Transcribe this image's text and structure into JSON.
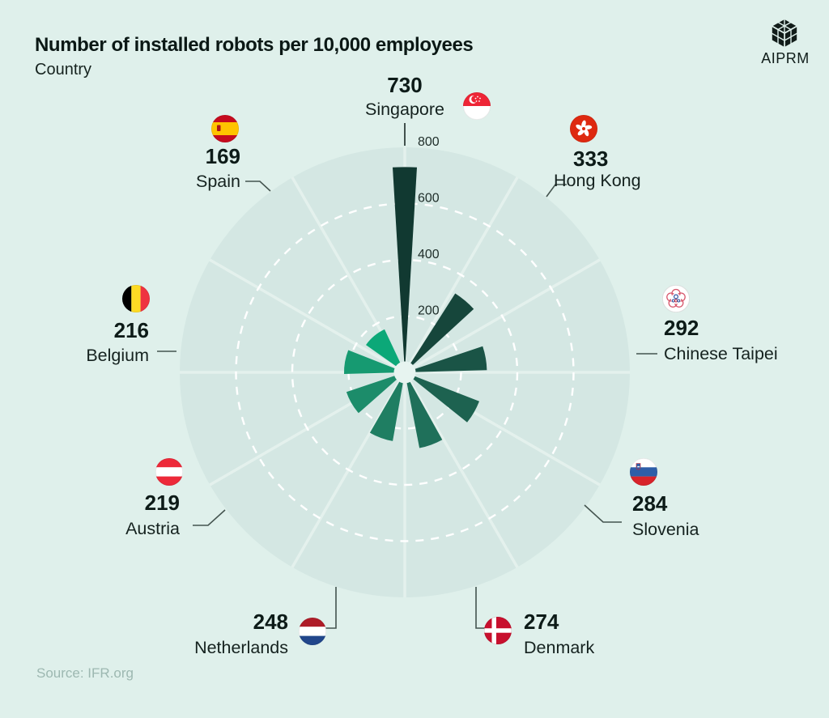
{
  "header": {
    "title": "Number of installed robots per 10,000 employees",
    "subtitle": "Country"
  },
  "brand": {
    "name": "AIPRM"
  },
  "footer": {
    "source_label": "Source: IFR.org"
  },
  "chart_data": {
    "type": "bar",
    "layout": "polar-radial-fan",
    "title": "Number of installed robots per 10,000 employees",
    "xlabel": "Country",
    "ylabel": "Installed robots per 10,000 employees",
    "rlim": [
      0,
      800
    ],
    "axis_ticks": [
      200,
      400,
      600,
      800
    ],
    "grid": "dashed white circles at 200/400/600, 12 radial sectors, solid outer disc at 800",
    "legend_position": "labels around chart with flags and callout lines",
    "background_accent": "#d4e7e3",
    "points": [
      {
        "label": "Singapore",
        "value": 730,
        "angle_deg": 0,
        "color": "#113931",
        "flag_icon": "flag-singapore-icon"
      },
      {
        "label": "Hong Kong",
        "value": 333,
        "angle_deg": 40,
        "color": "#16463b",
        "flag_icon": "flag-hong-kong-icon"
      },
      {
        "label": "Chinese Taipei",
        "value": 292,
        "angle_deg": 80,
        "color": "#1a5446",
        "flag_icon": "flag-chinese-taipei-icon"
      },
      {
        "label": "Slovenia",
        "value": 284,
        "angle_deg": 120,
        "color": "#1d6250",
        "flag_icon": "flag-slovenia-icon"
      },
      {
        "label": "Denmark",
        "value": 274,
        "angle_deg": 160,
        "color": "#1f705a",
        "flag_icon": "flag-denmark-icon"
      },
      {
        "label": "Netherlands",
        "value": 248,
        "angle_deg": 200,
        "color": "#1f7e62",
        "flag_icon": "flag-netherlands-icon"
      },
      {
        "label": "Austria",
        "value": 219,
        "angle_deg": 240,
        "color": "#1c8c6a",
        "flag_icon": "flag-austria-icon"
      },
      {
        "label": "Belgium",
        "value": 216,
        "angle_deg": 280,
        "color": "#169a71",
        "flag_icon": "flag-belgium-icon"
      },
      {
        "label": "Spain",
        "value": 169,
        "angle_deg": 320,
        "color": "#0ca878",
        "flag_icon": "flag-spain-icon"
      }
    ]
  }
}
